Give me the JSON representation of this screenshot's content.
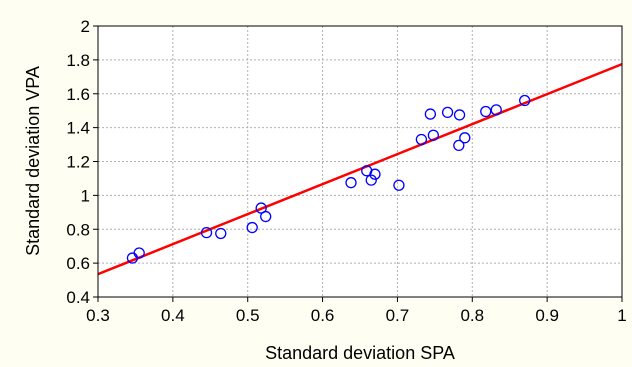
{
  "chart_data": {
    "type": "scatter",
    "title": "",
    "xlabel": "Standard deviation SPA",
    "ylabel": "Standard deviation VPA",
    "xlim": [
      0.3,
      1.0
    ],
    "ylim": [
      0.4,
      2.0
    ],
    "xticks": [
      0.3,
      0.4,
      0.5,
      0.6,
      0.7,
      0.8,
      0.9,
      1.0
    ],
    "yticks": [
      0.4,
      0.6,
      0.8,
      1.0,
      1.2,
      1.4,
      1.6,
      1.8,
      2.0
    ],
    "xtick_labels": [
      "0.3",
      "0.4",
      "0.5",
      "0.6",
      "0.7",
      "0.8",
      "0.9",
      "1"
    ],
    "ytick_labels": [
      "0.4",
      "0.6",
      "0.8",
      "1",
      "1.2",
      "1.4",
      "1.6",
      "1.8",
      "2"
    ],
    "grid": true,
    "marker_color": "#0000ff",
    "fit_color": "#ff0000",
    "points": [
      {
        "x": 0.346,
        "y": 0.63
      },
      {
        "x": 0.355,
        "y": 0.66
      },
      {
        "x": 0.445,
        "y": 0.78
      },
      {
        "x": 0.464,
        "y": 0.775
      },
      {
        "x": 0.506,
        "y": 0.81
      },
      {
        "x": 0.518,
        "y": 0.925
      },
      {
        "x": 0.524,
        "y": 0.875
      },
      {
        "x": 0.638,
        "y": 1.075
      },
      {
        "x": 0.659,
        "y": 1.145
      },
      {
        "x": 0.665,
        "y": 1.09
      },
      {
        "x": 0.67,
        "y": 1.125
      },
      {
        "x": 0.702,
        "y": 1.06
      },
      {
        "x": 0.732,
        "y": 1.33
      },
      {
        "x": 0.744,
        "y": 1.48
      },
      {
        "x": 0.748,
        "y": 1.355
      },
      {
        "x": 0.767,
        "y": 1.49
      },
      {
        "x": 0.783,
        "y": 1.475
      },
      {
        "x": 0.782,
        "y": 1.295
      },
      {
        "x": 0.79,
        "y": 1.34
      },
      {
        "x": 0.818,
        "y": 1.495
      },
      {
        "x": 0.832,
        "y": 1.505
      },
      {
        "x": 0.87,
        "y": 1.56
      }
    ],
    "fit_line": {
      "x": [
        0.3,
        1.0
      ],
      "y": [
        0.535,
        1.775
      ]
    }
  }
}
